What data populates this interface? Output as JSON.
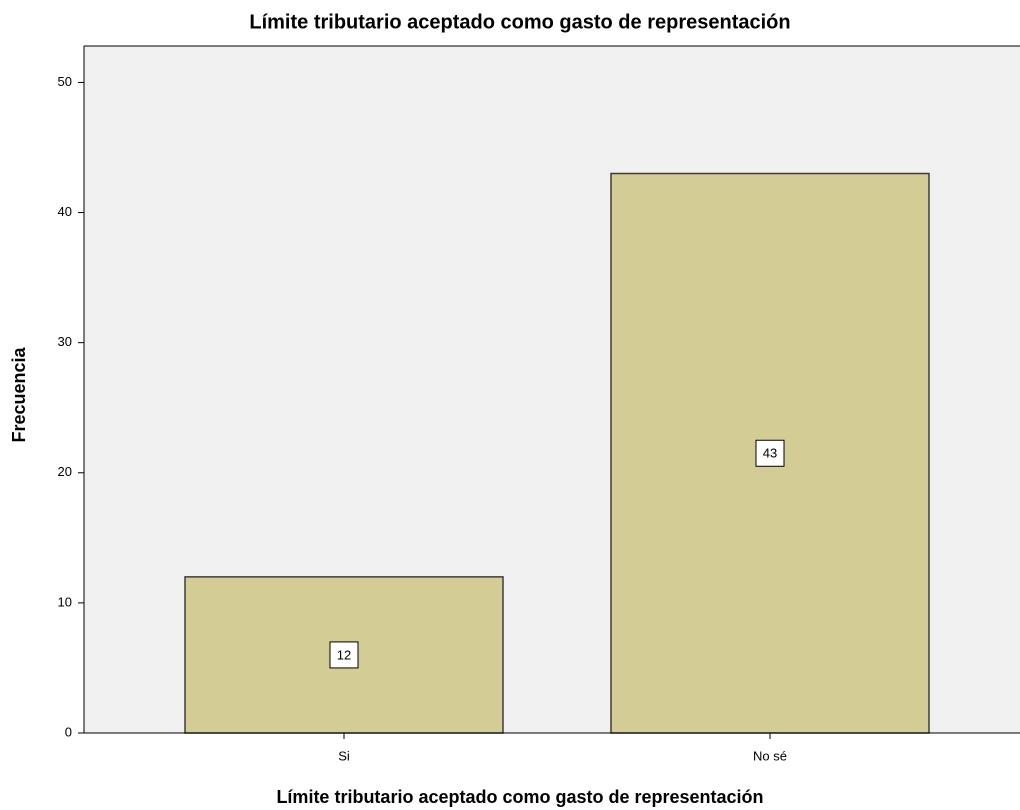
{
  "chart_data": {
    "type": "bar",
    "title": "Límite tributario aceptado como gasto de representación",
    "x_label": "Límite tributario aceptado como gasto de representación",
    "y_label": "Frecuencia",
    "categories": [
      "Si",
      "No sé"
    ],
    "values": [
      12,
      43
    ],
    "color": "#d3cd95",
    "ylim": [
      0,
      52.8
    ],
    "yticks": [
      0,
      10,
      20,
      30,
      40,
      50
    ],
    "grid": false
  }
}
